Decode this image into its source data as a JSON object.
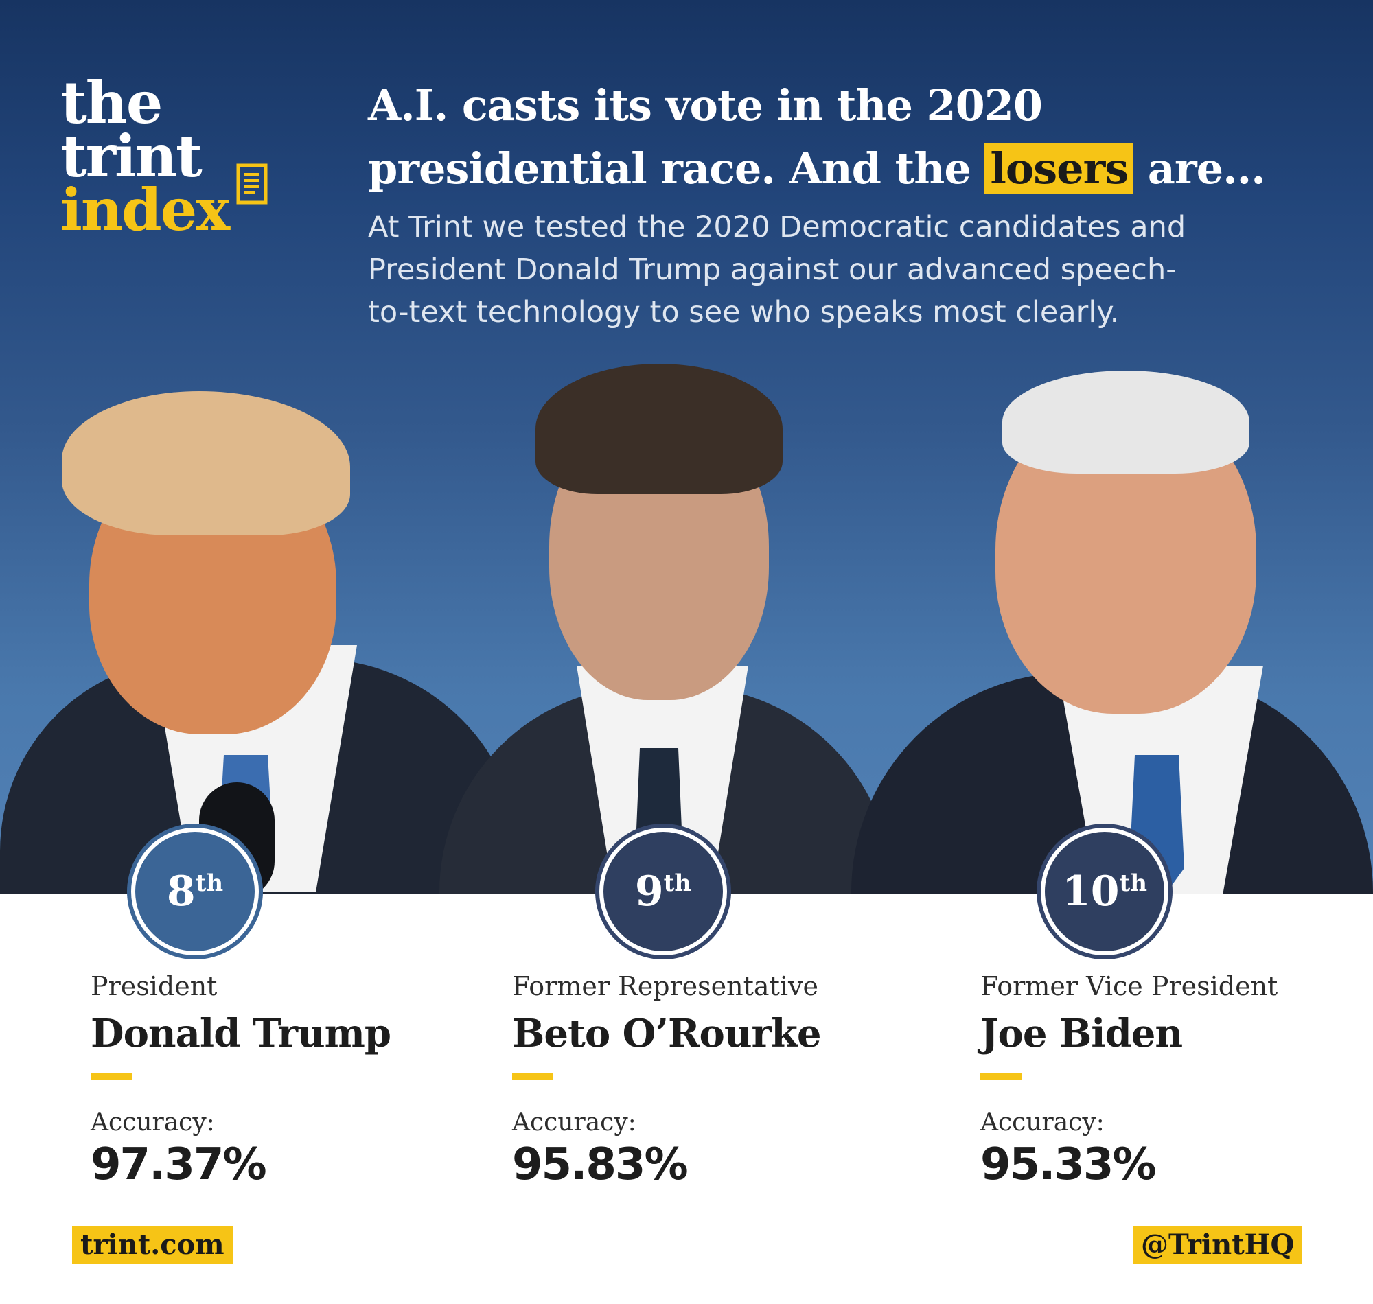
{
  "logo": {
    "line1": "the",
    "line2": "trint",
    "line3": "index",
    "icon": "document-icon"
  },
  "headline": {
    "line1": "A.I. casts its vote in the 2020",
    "line2_pre": "presidential race. And the ",
    "line2_highlight": "losers",
    "line2_post": " are..."
  },
  "intro": [
    "At Trint we tested the 2020 Democratic candidates and",
    "President Donald Trump against our advanced speech-",
    "to-text technology to see who speaks most clearly."
  ],
  "candidates": [
    {
      "rank": "8",
      "suffix": "th",
      "role": "President",
      "name": "Donald Trump",
      "accuracy_label": "Accuracy:",
      "accuracy": "97.37%"
    },
    {
      "rank": "9",
      "suffix": "th",
      "role": "Former Representative",
      "name": "Beto O’Rourke",
      "accuracy_label": "Accuracy:",
      "accuracy": "95.83%"
    },
    {
      "rank": "10",
      "suffix": "th",
      "role": "Former Vice President",
      "name": "Joe Biden",
      "accuracy_label": "Accuracy:",
      "accuracy": "95.33%"
    }
  ],
  "footer": {
    "website": "trint.com",
    "handle": "@TrintHQ"
  },
  "colors": {
    "brand_yellow": "#f6c416",
    "navy": "#173462",
    "badge_blue": "#3b6596",
    "badge_navy": "#2f3f60"
  }
}
